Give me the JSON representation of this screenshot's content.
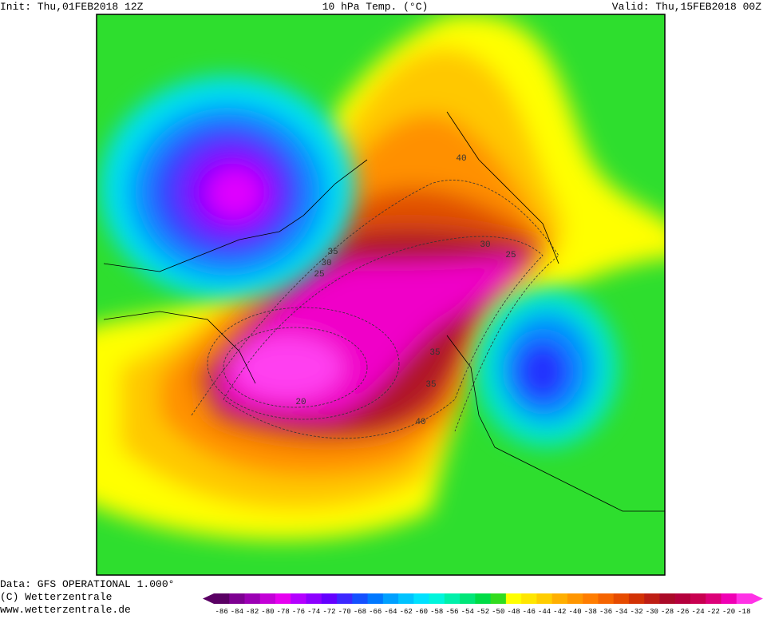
{
  "header": {
    "init": "Init: Thu,01FEB2018 12Z",
    "title": "10 hPa Temp. (°C)",
    "valid": "Valid: Thu,15FEB2018 00Z"
  },
  "footer": {
    "data_source": "Data: GFS OPERATIONAL 1.000°",
    "copyright": "(C) Wetterzentrale",
    "website": "www.wetterzentrale.de"
  },
  "contour_labels": [
    40,
    30,
    25,
    35,
    30,
    25,
    35,
    35,
    20,
    40
  ],
  "colorbar": {
    "labels": [
      -86,
      -84,
      -82,
      -80,
      -78,
      -76,
      -74,
      -72,
      -70,
      -68,
      -66,
      -64,
      -62,
      -60,
      -58,
      -56,
      -54,
      -52,
      -50,
      -48,
      -46,
      -44,
      -42,
      -40,
      -38,
      -36,
      -34,
      -32,
      -30,
      -28,
      -26,
      -24,
      -22,
      -20,
      -18
    ],
    "colors": [
      "#5a0064",
      "#7d0091",
      "#9b00b4",
      "#c300d7",
      "#e600f0",
      "#b400ff",
      "#8c00ff",
      "#6400ff",
      "#3c28ff",
      "#1450ff",
      "#0078ff",
      "#00a0ff",
      "#00c3ff",
      "#00e1ff",
      "#00f5dc",
      "#00f0aa",
      "#00e678",
      "#00dc46",
      "#32dc1e",
      "#ffff00",
      "#ffe600",
      "#ffcd00",
      "#ffaf00",
      "#ff9600",
      "#ff7d00",
      "#f56400",
      "#e64b00",
      "#d23205",
      "#be1e14",
      "#aa0a28",
      "#b4003c",
      "#c80050",
      "#dc0078",
      "#f000b4",
      "#ff32e6"
    ]
  }
}
